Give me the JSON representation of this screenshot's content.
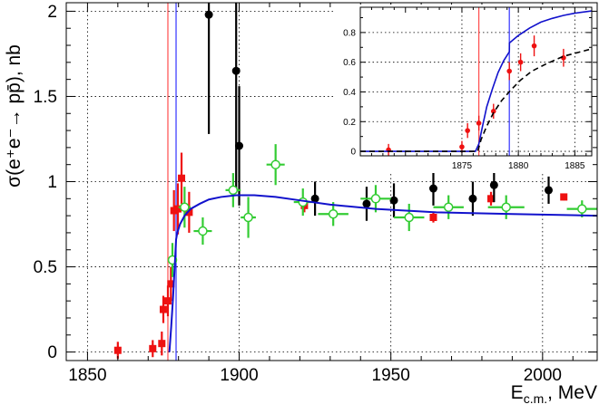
{
  "chart_data": [
    {
      "type": "scatter",
      "xlabel_main": "E",
      "xlabel_sub": "c.m.",
      "xlabel_unit": ", MeV",
      "ylabel": "σ(e⁺e⁻→ pp̄), nb",
      "xlim": [
        1843,
        2018
      ],
      "ylim": [
        -0.05,
        2.05
      ],
      "x_ticks": [
        1850,
        1900,
        1950,
        2000
      ],
      "y_ticks": [
        0,
        0.5,
        1,
        1.5,
        2
      ],
      "y_tick_labels": [
        "0",
        "0.5",
        "1",
        "1.5",
        "2"
      ],
      "grid": true,
      "vlines": [
        {
          "x": 1876.5,
          "color": "#ff4d4d"
        },
        {
          "x": 1879.2,
          "color": "#3333ff"
        }
      ],
      "series": [
        {
          "marker": "square",
          "color": "#ee1111",
          "points": [
            {
              "x": 1860.0,
              "y": 0.01,
              "ey": 0.05
            },
            {
              "x": 1871.5,
              "y": 0.02,
              "ey": 0.05
            },
            {
              "x": 1874.5,
              "y": 0.05,
              "ey": 0.07
            },
            {
              "x": 1875.0,
              "y": 0.25,
              "ey": 0.08
            },
            {
              "x": 1876.5,
              "y": 0.3,
              "ey": 0.09
            },
            {
              "x": 1877.5,
              "y": 0.4,
              "ey": 0.1
            },
            {
              "x": 1878.5,
              "y": 0.83,
              "ey": 0.12
            },
            {
              "x": 1879.8,
              "y": 0.84,
              "ey": 0.15
            },
            {
              "x": 1881.0,
              "y": 1.02,
              "ey": 0.15
            },
            {
              "x": 1883.5,
              "y": 0.82,
              "ey": 0.12
            },
            {
              "x": 1921.5,
              "y": 0.86,
              "ey": 0.04
            },
            {
              "x": 1964.0,
              "y": 0.79,
              "ey": 0.03
            },
            {
              "x": 1983.0,
              "y": 0.9,
              "ey": 0.04
            },
            {
              "x": 2007.0,
              "y": 0.91,
              "ey": 0.02
            }
          ]
        },
        {
          "marker": "circle",
          "color": "#000000",
          "points": [
            {
              "x": 1890.0,
              "y": 1.98,
              "ey": 0.7
            },
            {
              "x": 1899.0,
              "y": 1.65,
              "ey": 0.7
            },
            {
              "x": 1900.0,
              "y": 1.21,
              "ey": 0.35
            },
            {
              "x": 1925.0,
              "y": 0.9,
              "ey": 0.1
            },
            {
              "x": 1942.0,
              "y": 0.87,
              "ey": 0.1
            },
            {
              "x": 1951.0,
              "y": 0.89,
              "ey": 0.1
            },
            {
              "x": 1964.0,
              "y": 0.96,
              "ey": 0.1
            },
            {
              "x": 1977.0,
              "y": 0.9,
              "ey": 0.1
            },
            {
              "x": 1984.0,
              "y": 0.98,
              "ey": 0.1
            },
            {
              "x": 2002.0,
              "y": 0.95,
              "ey": 0.08
            }
          ]
        },
        {
          "marker": "open-circle",
          "color": "#33cc33",
          "points": [
            {
              "x": 1878.0,
              "y": 0.54,
              "ey": 0.1,
              "ex": 1.5
            },
            {
              "x": 1882.0,
              "y": 0.85,
              "ey": 0.12,
              "ex": 2.0
            },
            {
              "x": 1888.0,
              "y": 0.71,
              "ey": 0.08,
              "ex": 3.0
            },
            {
              "x": 1898.0,
              "y": 0.95,
              "ey": 0.1,
              "ex": 2.5
            },
            {
              "x": 1903.0,
              "y": 0.79,
              "ey": 0.12,
              "ex": 2.5
            },
            {
              "x": 1912.0,
              "y": 1.1,
              "ey": 0.12,
              "ex": 3.0
            },
            {
              "x": 1921.0,
              "y": 0.88,
              "ey": 0.08,
              "ex": 3.0
            },
            {
              "x": 1931.0,
              "y": 0.81,
              "ey": 0.07,
              "ex": 5.0
            },
            {
              "x": 1945.0,
              "y": 0.9,
              "ey": 0.08,
              "ex": 5.0
            },
            {
              "x": 1956.0,
              "y": 0.79,
              "ey": 0.08,
              "ex": 5.0
            },
            {
              "x": 1969.0,
              "y": 0.85,
              "ey": 0.07,
              "ex": 5.0
            },
            {
              "x": 1988.0,
              "y": 0.85,
              "ey": 0.07,
              "ex": 6.0
            },
            {
              "x": 2013.0,
              "y": 0.84,
              "ey": 0.05,
              "ex": 5.0
            }
          ]
        }
      ],
      "curves": [
        {
          "color": "#1111cc",
          "x": [
            1877.0,
            1877.6,
            1878.2,
            1878.8,
            1879.2,
            1879.6,
            1880.5,
            1882,
            1884,
            1887,
            1890,
            1894,
            1899,
            1905,
            1912,
            1920,
            1930,
            1945,
            1965,
            1990,
            2018
          ],
          "y": [
            0.0,
            0.15,
            0.32,
            0.52,
            0.66,
            0.7,
            0.75,
            0.8,
            0.84,
            0.87,
            0.895,
            0.91,
            0.92,
            0.92,
            0.91,
            0.89,
            0.865,
            0.84,
            0.82,
            0.81,
            0.8
          ]
        }
      ]
    },
    {
      "type": "scatter",
      "xlim": [
        1866,
        1886.5
      ],
      "ylim": [
        -0.03,
        0.97
      ],
      "x_ticks": [
        1875,
        1880,
        1885
      ],
      "y_ticks": [
        0,
        0.2,
        0.4,
        0.6,
        0.8
      ],
      "y_tick_labels": [
        "0",
        "0.2",
        "0.4",
        "0.6",
        "0.8"
      ],
      "grid": true,
      "vlines": [
        {
          "x": 1876.5,
          "color": "#ff4d4d"
        },
        {
          "x": 1879.2,
          "color": "#3333ff"
        }
      ],
      "series": [
        {
          "marker": "dot",
          "color": "#ee1111",
          "points": [
            {
              "x": 1868.5,
              "y": 0.01,
              "ey": 0.04
            },
            {
              "x": 1875.0,
              "y": 0.03,
              "ey": 0.04
            },
            {
              "x": 1875.5,
              "y": 0.14,
              "ey": 0.05
            },
            {
              "x": 1876.5,
              "y": 0.19,
              "ey": 0.05
            },
            {
              "x": 1877.8,
              "y": 0.27,
              "ey": 0.05
            },
            {
              "x": 1879.2,
              "y": 0.54,
              "ey": 0.06
            },
            {
              "x": 1880.2,
              "y": 0.6,
              "ey": 0.06
            },
            {
              "x": 1881.4,
              "y": 0.71,
              "ey": 0.07
            },
            {
              "x": 1884.0,
              "y": 0.63,
              "ey": 0.06
            }
          ]
        }
      ],
      "curves": [
        {
          "color": "#1111cc",
          "dash": false,
          "x": [
            1866,
            1876.2,
            1876.5,
            1876.8,
            1877.2,
            1877.7,
            1878.2,
            1878.7,
            1879.2,
            1879.21,
            1880,
            1881,
            1882,
            1883,
            1884,
            1885,
            1886.5
          ],
          "y": [
            0.0,
            0.0,
            0.05,
            0.16,
            0.3,
            0.42,
            0.53,
            0.61,
            0.67,
            0.73,
            0.78,
            0.83,
            0.87,
            0.895,
            0.915,
            0.93,
            0.945
          ]
        },
        {
          "color": "#000000",
          "dash": true,
          "x": [
            1866,
            1876.4,
            1876.7,
            1877.2,
            1877.8,
            1878.5,
            1879.3,
            1880.2,
            1881.2,
            1882.5,
            1884,
            1885.5,
            1886.5
          ],
          "y": [
            0.0,
            0.0,
            0.08,
            0.17,
            0.26,
            0.34,
            0.41,
            0.48,
            0.54,
            0.59,
            0.64,
            0.67,
            0.69
          ]
        }
      ]
    }
  ]
}
